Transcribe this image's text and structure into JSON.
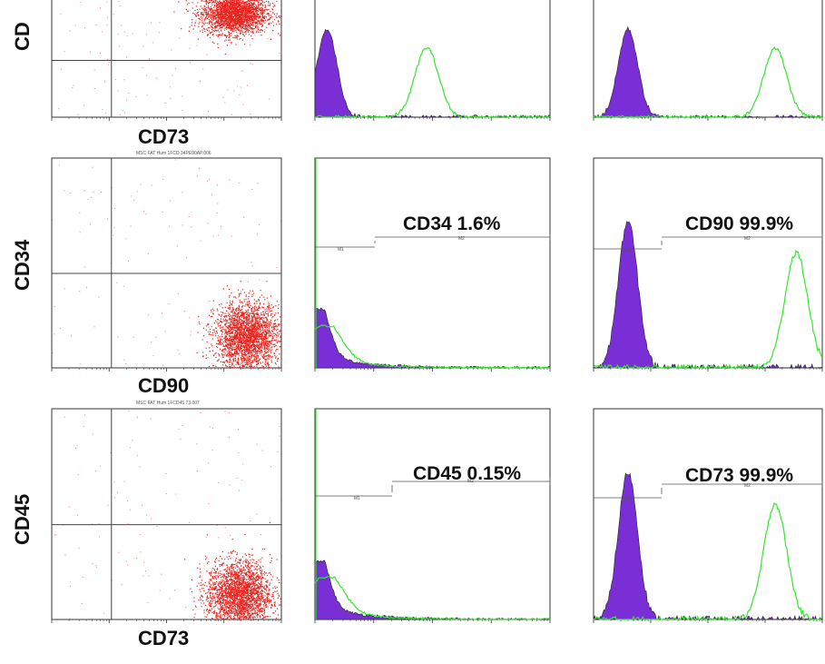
{
  "row_labels": {
    "row1": "CD",
    "row2": "CD34",
    "row3": "CD45"
  },
  "x_labels": {
    "row1": "CD73",
    "row2": "CD90",
    "row3": "CD73"
  },
  "percent_labels": {
    "cd34": "CD34  1.6%",
    "cd90": "CD90  99.9%",
    "cd45": "CD45  0.15%",
    "cd73": "CD73  99.9%"
  },
  "scatter_titles": {
    "row2": "MSC FAT Hum 1FCD 34PE90AP.006",
    "row3": "MSC FAT Hum 1FCD45 73.007"
  },
  "histogram_markers": {
    "m1": "M1",
    "m2": "M2"
  },
  "colors": {
    "scatter": "#e8241e",
    "isotype_fill": "#7a2fd6",
    "stained_line": "#35e62f",
    "axis": "#333333"
  },
  "chart_data": [
    {
      "type": "scatter",
      "panel": "row1-col1",
      "scale": "log",
      "xlim": [
        1,
        10000
      ],
      "ylim": [
        1,
        10000
      ],
      "cluster": {
        "x_center": 1500,
        "y_center": 2000
      }
    },
    {
      "type": "area",
      "panel": "row1-col2",
      "scale": "log",
      "xlim": [
        1,
        10000
      ],
      "series": [
        {
          "kind": "isotype",
          "peak_x": 1.6
        },
        {
          "kind": "stained",
          "peak_x": 80
        }
      ]
    },
    {
      "type": "area",
      "panel": "row1-col3",
      "scale": "log",
      "xlim": [
        1,
        10000
      ],
      "series": [
        {
          "kind": "isotype",
          "peak_x": 4
        },
        {
          "kind": "stained",
          "peak_x": 1500
        }
      ]
    },
    {
      "type": "scatter",
      "panel": "row2-col1",
      "scale": "log",
      "xlim": [
        1,
        10000
      ],
      "ylim": [
        1,
        10000
      ],
      "cluster": {
        "x_center": 2500,
        "y_center": 4
      }
    },
    {
      "type": "area",
      "panel": "row2-col2",
      "scale": "log",
      "xlim": [
        1,
        10000
      ],
      "marker_percent": 1.6,
      "series": [
        {
          "kind": "isotype",
          "peak_x": 1.1
        },
        {
          "kind": "stained",
          "peak_x": 1.3
        }
      ]
    },
    {
      "type": "area",
      "panel": "row2-col3",
      "scale": "log",
      "xlim": [
        1,
        10000
      ],
      "marker_percent": 99.9,
      "series": [
        {
          "kind": "isotype",
          "peak_x": 4
        },
        {
          "kind": "stained",
          "peak_x": 3500
        }
      ]
    },
    {
      "type": "scatter",
      "panel": "row3-col1",
      "scale": "log",
      "xlim": [
        1,
        10000
      ],
      "ylim": [
        1,
        10000
      ],
      "cluster": {
        "x_center": 1800,
        "y_center": 3
      }
    },
    {
      "type": "area",
      "panel": "row3-col2",
      "scale": "log",
      "xlim": [
        1,
        10000
      ],
      "marker_percent": 0.15,
      "series": [
        {
          "kind": "isotype",
          "peak_x": 1.1
        },
        {
          "kind": "stained",
          "peak_x": 1.4
        }
      ]
    },
    {
      "type": "area",
      "panel": "row3-col3",
      "scale": "log",
      "xlim": [
        1,
        10000
      ],
      "marker_percent": 99.9,
      "series": [
        {
          "kind": "isotype",
          "peak_x": 4
        },
        {
          "kind": "stained",
          "peak_x": 1500
        }
      ]
    }
  ]
}
